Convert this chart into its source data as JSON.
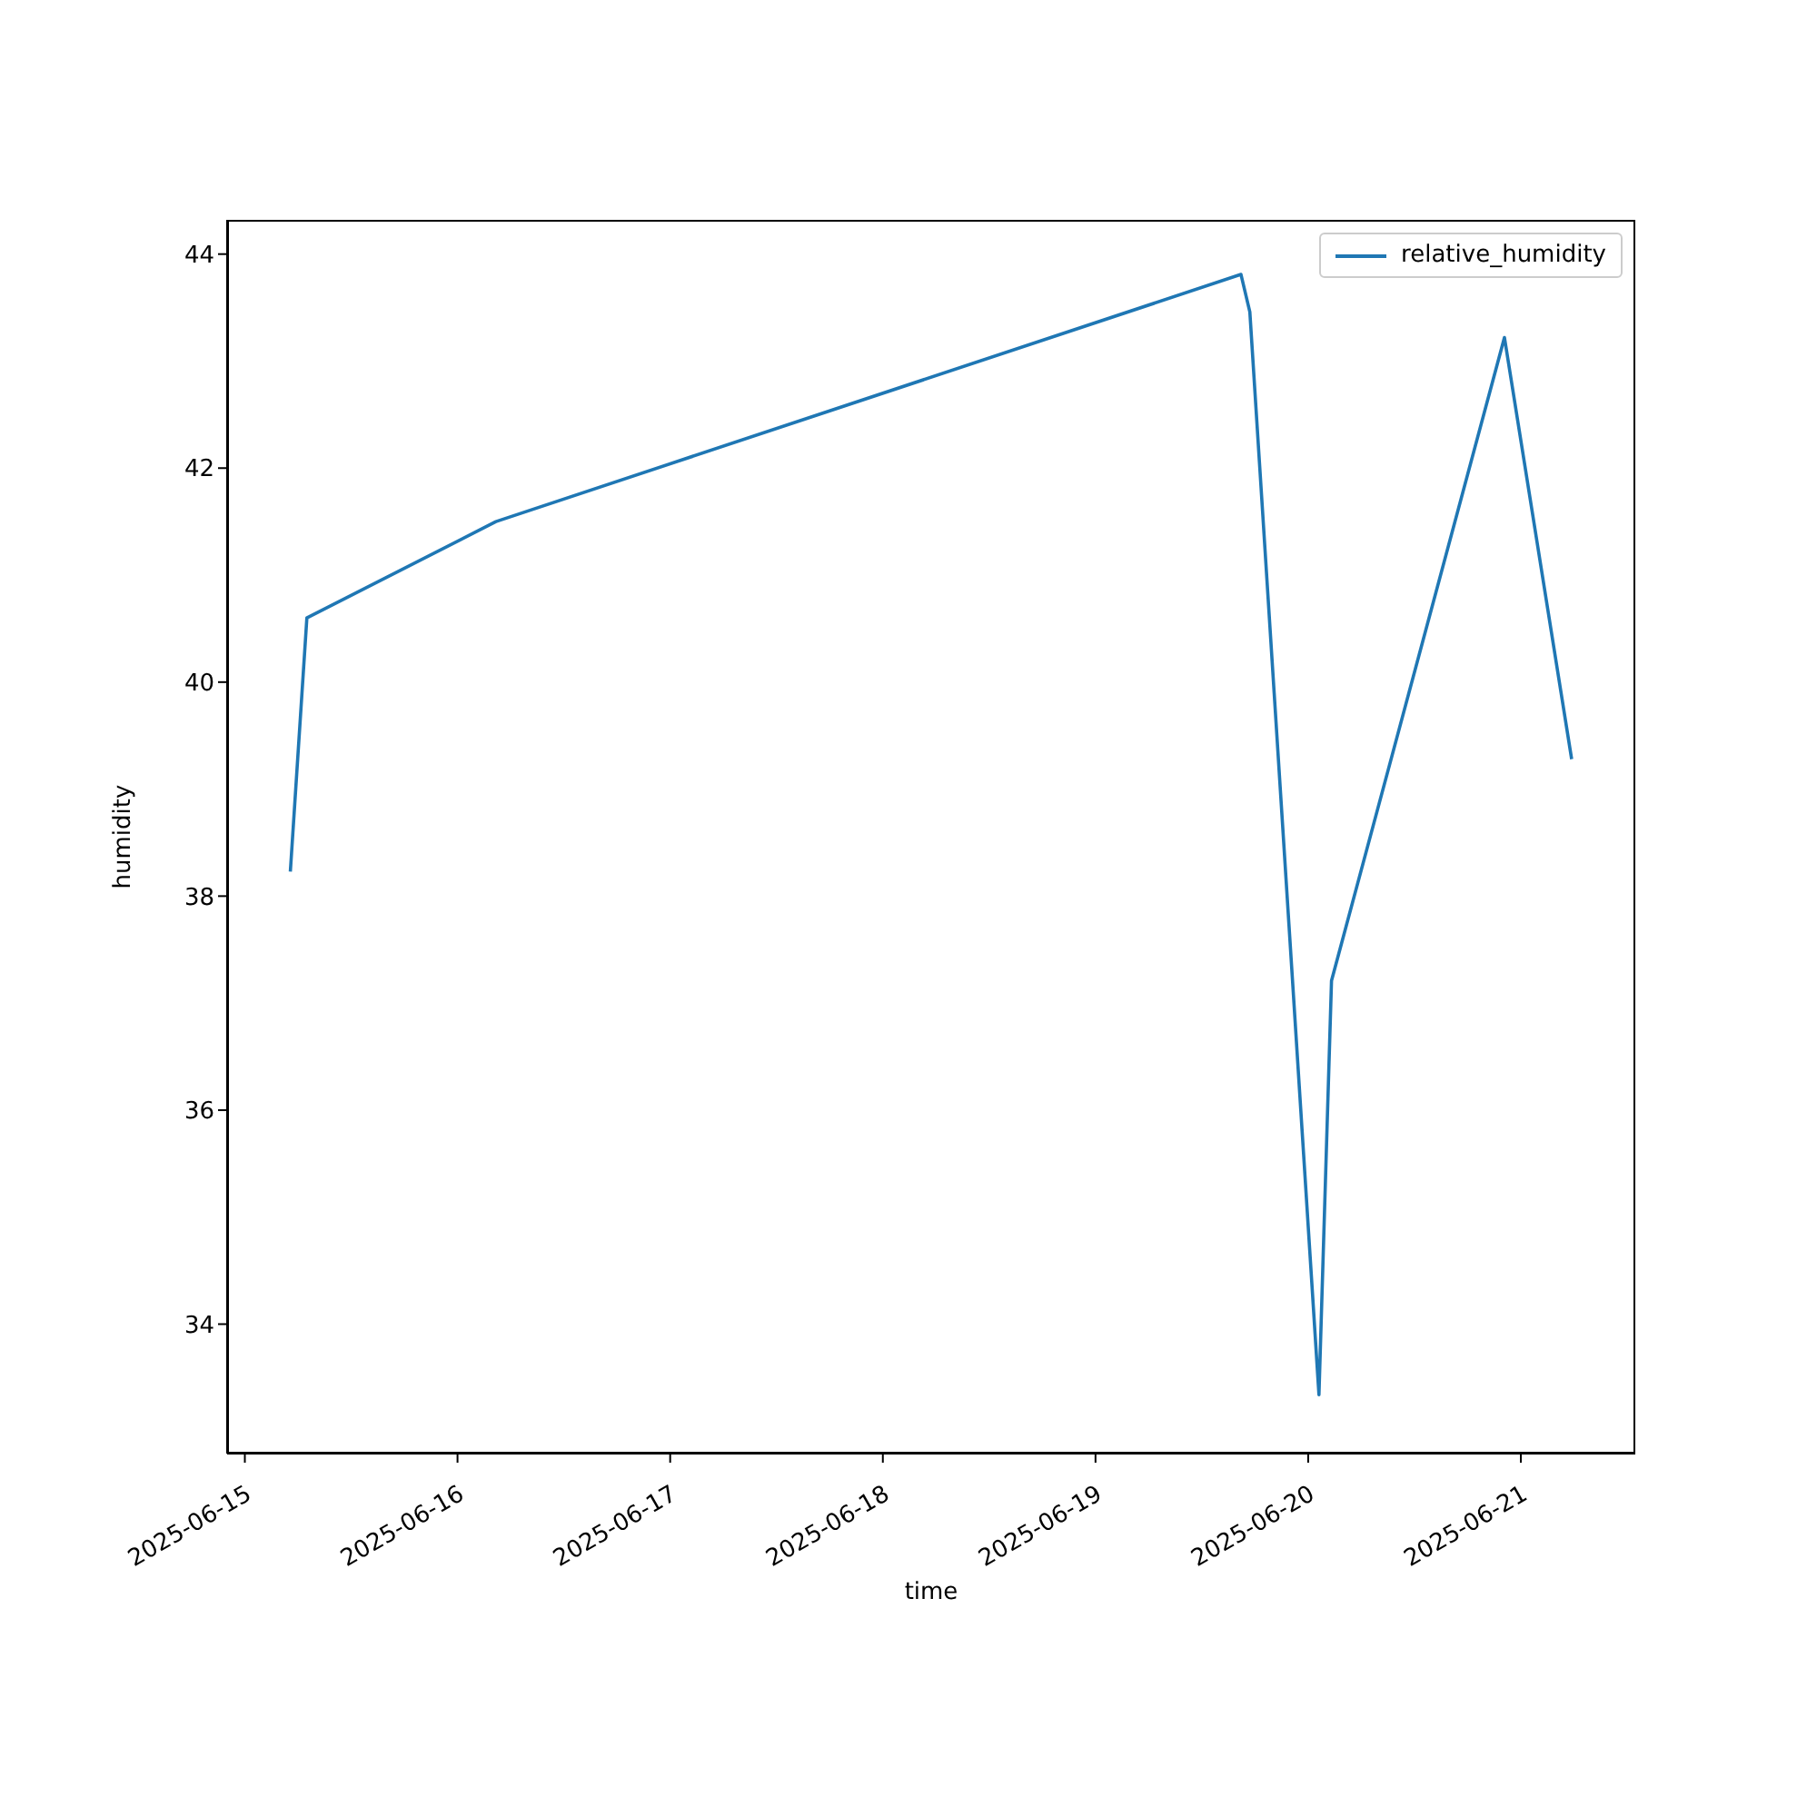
{
  "chart_data": {
    "type": "line",
    "xlabel": "time",
    "ylabel": "humidity",
    "x": [
      "2025-06-15T05:08",
      "2025-06-15T07:00",
      "2025-06-16T04:20",
      "2025-06-19T16:25",
      "2025-06-19T17:25",
      "2025-06-20T01:13",
      "2025-06-20T02:38",
      "2025-06-20T22:09",
      "2025-06-21T05:44"
    ],
    "series": [
      {
        "name": "relative_humidity",
        "color": "#1f77b4",
        "values": [
          38.23,
          40.6,
          41.5,
          43.81,
          43.46,
          33.34,
          37.21,
          43.22,
          39.28
        ]
      }
    ],
    "xlim": [
      "2025-06-14T22:00",
      "2025-06-21T12:55"
    ],
    "xticks": [
      "2025-06-15",
      "2025-06-16",
      "2025-06-17",
      "2025-06-18",
      "2025-06-19",
      "2025-06-20",
      "2025-06-21"
    ],
    "ylim": [
      32.79,
      44.32
    ],
    "yticks": [
      34,
      36,
      38,
      40,
      42,
      44
    ],
    "legend": "top right",
    "grid": false,
    "marker": "none",
    "line_style": "solid"
  }
}
